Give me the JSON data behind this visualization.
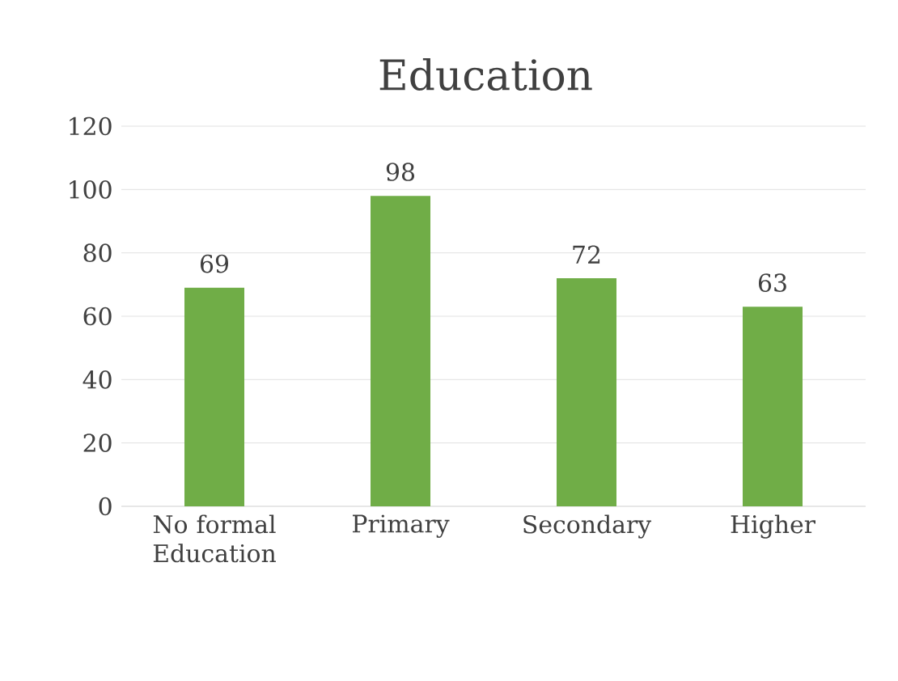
{
  "chart_data": {
    "type": "bar",
    "title": "Education",
    "categories": [
      "No formal Education",
      "Primary",
      "Secondary",
      "Higher"
    ],
    "values": [
      69,
      98,
      72,
      63
    ],
    "color": "#70ad47",
    "ylim": [
      0,
      120
    ],
    "yticks": [
      0,
      20,
      40,
      60,
      80,
      100,
      120
    ],
    "grid": "y",
    "data_labels": true
  }
}
